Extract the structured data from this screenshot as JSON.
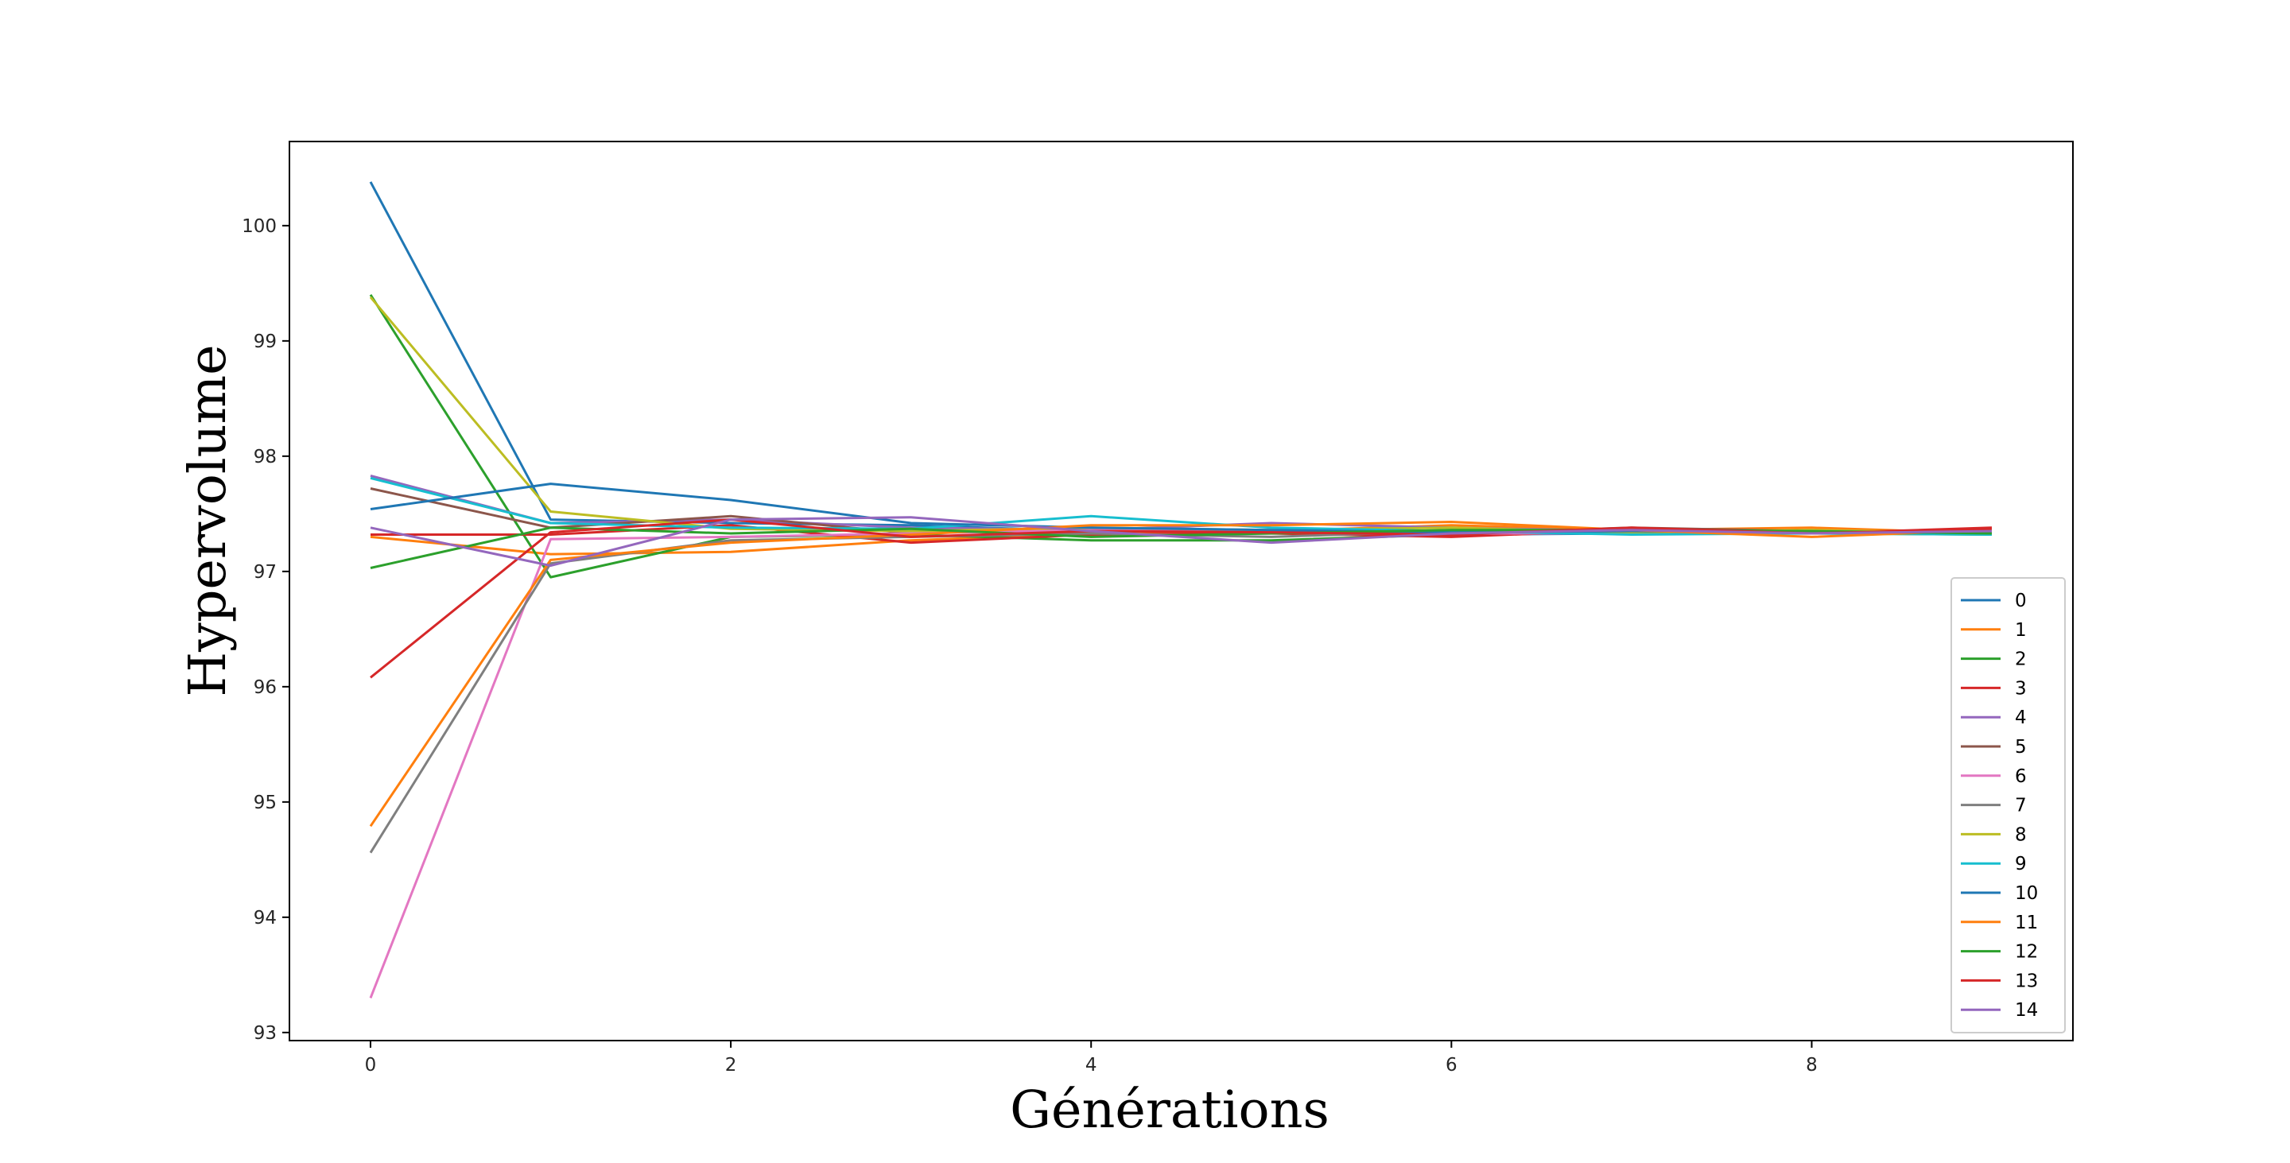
{
  "chart_data": {
    "type": "line",
    "title": "",
    "xlabel": "Générations",
    "ylabel": "Hypervolume",
    "xlim": [
      -0.45,
      9.45
    ],
    "ylim": [
      92.93,
      100.73
    ],
    "x": [
      0,
      1,
      2,
      3,
      4,
      5,
      6,
      7,
      8,
      9
    ],
    "xticks": [
      0,
      2,
      4,
      6,
      8
    ],
    "xtick_labels": [
      "0",
      "2",
      "4",
      "6",
      "8"
    ],
    "yticks": [
      93,
      94,
      95,
      96,
      97,
      98,
      99,
      100
    ],
    "ytick_labels": [
      "93",
      "94",
      "95",
      "96",
      "97",
      "98",
      "99",
      "100"
    ],
    "grid": false,
    "legend_position": "lower-right",
    "series": [
      {
        "name": "0",
        "color": "#1f77b4",
        "values": [
          100.38,
          97.45,
          97.42,
          97.4,
          97.35,
          97.33,
          97.32,
          97.33,
          97.33,
          97.34
        ]
      },
      {
        "name": "1",
        "color": "#ff7f0e",
        "values": [
          97.3,
          97.15,
          97.17,
          97.27,
          97.33,
          97.35,
          97.4,
          97.36,
          97.38,
          97.33
        ]
      },
      {
        "name": "2",
        "color": "#2ca02c",
        "values": [
          99.4,
          96.95,
          97.3,
          97.32,
          97.27,
          97.27,
          97.32,
          97.34,
          97.33,
          97.32
        ]
      },
      {
        "name": "3",
        "color": "#d62728",
        "values": [
          97.32,
          97.32,
          97.4,
          97.25,
          97.32,
          97.33,
          97.3,
          97.36,
          97.33,
          97.38
        ]
      },
      {
        "name": "4",
        "color": "#9467bd",
        "values": [
          97.83,
          97.42,
          97.45,
          97.38,
          97.36,
          97.42,
          97.38,
          97.35,
          97.34,
          97.33
        ]
      },
      {
        "name": "5",
        "color": "#8c564b",
        "values": [
          97.72,
          97.38,
          97.48,
          97.33,
          97.38,
          97.34,
          97.33,
          97.38,
          97.35,
          97.34
        ]
      },
      {
        "name": "6",
        "color": "#e377c2",
        "values": [
          93.3,
          97.28,
          97.3,
          97.33,
          97.36,
          97.34,
          97.33,
          97.33,
          97.34,
          97.33
        ]
      },
      {
        "name": "7",
        "color": "#7f7f7f",
        "values": [
          94.56,
          97.07,
          97.27,
          97.3,
          97.33,
          97.3,
          97.35,
          97.34,
          97.34,
          97.33
        ]
      },
      {
        "name": "8",
        "color": "#bcbd22",
        "values": [
          99.38,
          97.52,
          97.37,
          97.35,
          97.38,
          97.36,
          97.38,
          97.34,
          97.36,
          97.33
        ]
      },
      {
        "name": "9",
        "color": "#17becf",
        "values": [
          97.81,
          97.42,
          97.38,
          97.37,
          97.48,
          97.38,
          97.35,
          97.32,
          97.33,
          97.32
        ]
      },
      {
        "name": "10",
        "color": "#1f77b4",
        "values": [
          97.54,
          97.76,
          97.62,
          97.42,
          97.38,
          97.36,
          97.34,
          97.35,
          97.34,
          97.34
        ]
      },
      {
        "name": "11",
        "color": "#ff7f0e",
        "values": [
          94.79,
          97.1,
          97.25,
          97.32,
          97.4,
          97.4,
          97.43,
          97.36,
          97.3,
          97.36
        ]
      },
      {
        "name": "12",
        "color": "#2ca02c",
        "values": [
          97.03,
          97.38,
          97.33,
          97.37,
          97.3,
          97.33,
          97.36,
          97.36,
          97.35,
          97.33
        ]
      },
      {
        "name": "13",
        "color": "#d62728",
        "values": [
          96.08,
          97.34,
          97.45,
          97.3,
          97.35,
          97.34,
          97.32,
          97.38,
          97.33,
          97.37
        ]
      },
      {
        "name": "14",
        "color": "#9467bd",
        "values": [
          97.38,
          97.05,
          97.45,
          97.47,
          97.35,
          97.25,
          97.33,
          97.36,
          97.33,
          97.35
        ]
      }
    ]
  }
}
